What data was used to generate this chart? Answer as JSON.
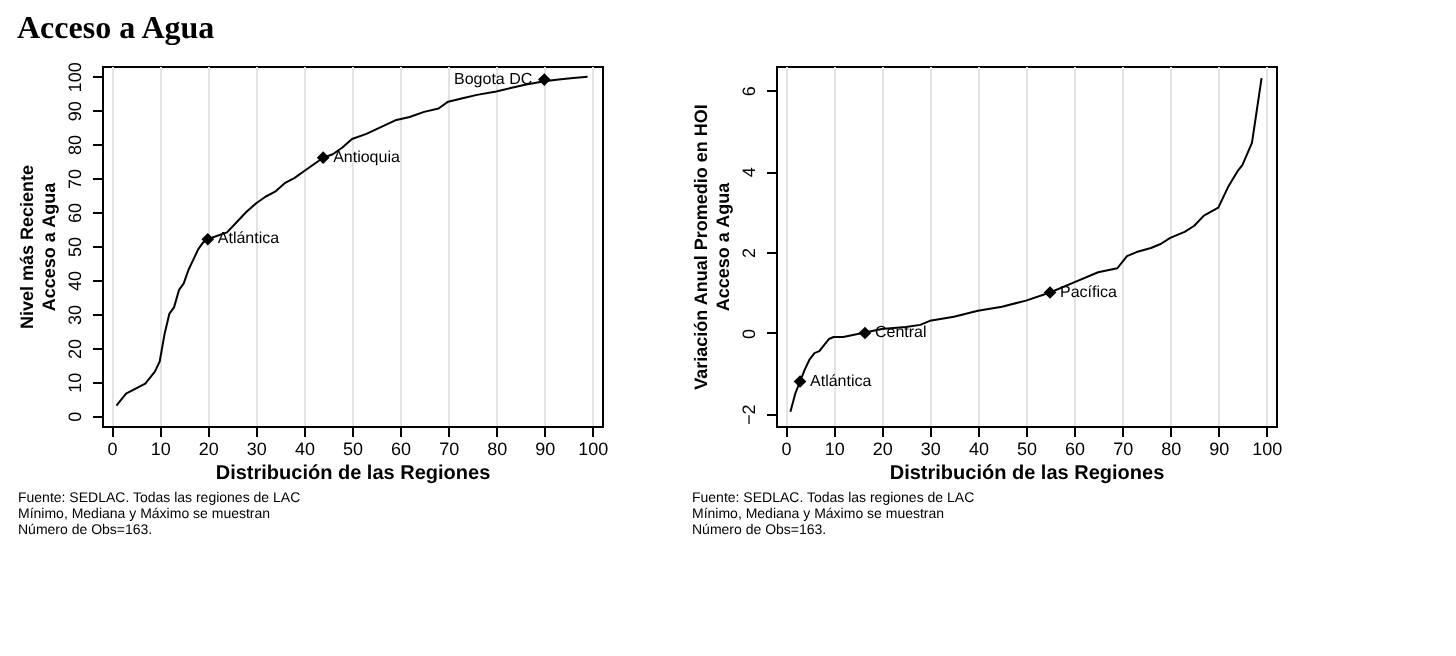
{
  "chart_data": [
    {
      "type": "line",
      "title": "Acceso a Agua",
      "xlabel": "Distribución de las Regiones",
      "ylabel": "Nivel más Reciente\nAcceso a Agua",
      "xlim": [
        -2,
        102
      ],
      "xticks": [
        0,
        10,
        20,
        30,
        40,
        50,
        60,
        70,
        80,
        90,
        100
      ],
      "ylim": [
        -3,
        103
      ],
      "yticks": [
        0,
        10,
        20,
        30,
        40,
        50,
        60,
        70,
        80,
        90,
        100
      ],
      "grid": "x",
      "series": [
        {
          "color": "#000000",
          "x": [
            1,
            3,
            5,
            7,
            9,
            10,
            11,
            12,
            13,
            14,
            15,
            16,
            17,
            18,
            19,
            20,
            22,
            24,
            26,
            28,
            30,
            32,
            34,
            36,
            38,
            40,
            42,
            44,
            46,
            48,
            50,
            53,
            56,
            59,
            62,
            65,
            68,
            70,
            73,
            76,
            80,
            83,
            86,
            88,
            90,
            93,
            96,
            99
          ],
          "values": [
            3,
            6.5,
            8,
            9.5,
            13,
            16,
            24,
            30,
            32,
            37,
            39,
            43,
            46,
            49,
            51,
            52,
            53,
            54,
            57,
            60,
            62.5,
            64.5,
            66,
            68.5,
            70,
            72,
            74,
            76,
            77,
            79,
            81.5,
            83,
            85,
            87,
            88,
            89.5,
            90.5,
            92.5,
            93.5,
            94.5,
            95.5,
            96.5,
            97.5,
            98,
            98.5,
            99,
            99.5,
            99.8
          ]
        },
        {
          "type": "scatter",
          "marker": "diamond",
          "color": "#000000",
          "x": [
            20,
            44,
            90
          ],
          "values": [
            52,
            76,
            99
          ]
        }
      ],
      "annotations": [
        {
          "text": "Atlántica",
          "x": 20,
          "y": 52
        },
        {
          "text": "Antioquia",
          "x": 44,
          "y": 76
        },
        {
          "text": "Bogota DC",
          "x": 90,
          "y": 99
        },
        "Fuente: SEDLAC. Todas las regiones de LAC",
        "Mínimo, Mediana y Máximo se muestran",
        "Número de Obs=163."
      ]
    },
    {
      "type": "line",
      "xlabel": "Distribución de las Regiones",
      "ylabel": "Variación Anual Promedio en HOI\nAcceso a Agua",
      "xlim": [
        -2,
        102
      ],
      "xticks": [
        0,
        10,
        20,
        30,
        40,
        50,
        60,
        70,
        80,
        90,
        100
      ],
      "ylim": [
        -2.3,
        6.6
      ],
      "yticks": [
        -2,
        0,
        2,
        4,
        6
      ],
      "grid": "x",
      "series": [
        {
          "color": "#000000",
          "x": [
            1,
            2,
            3,
            4,
            5,
            6,
            7,
            8,
            9,
            10,
            12,
            14,
            16,
            18,
            20,
            25,
            28,
            30,
            35,
            40,
            45,
            50,
            55,
            60,
            65,
            69,
            71,
            73,
            76,
            78,
            80,
            83,
            85,
            87,
            90,
            92,
            94,
            95,
            97,
            98,
            99
          ],
          "values": [
            -1.95,
            -1.5,
            -1.2,
            -0.9,
            -0.65,
            -0.5,
            -0.45,
            -0.3,
            -0.15,
            -0.1,
            -0.1,
            -0.05,
            0,
            0.05,
            0.1,
            0.15,
            0.2,
            0.3,
            0.4,
            0.55,
            0.65,
            0.8,
            1.0,
            1.25,
            1.5,
            1.6,
            1.9,
            2.0,
            2.1,
            2.2,
            2.35,
            2.5,
            2.65,
            2.9,
            3.1,
            3.6,
            4.0,
            4.15,
            4.7,
            5.5,
            6.3
          ]
        },
        {
          "type": "scatter",
          "marker": "diamond",
          "color": "#000000",
          "x": [
            3,
            16.5,
            55
          ],
          "values": [
            -1.2,
            0,
            1.0
          ]
        }
      ],
      "annotations": [
        {
          "text": "Atlántica",
          "x": 3,
          "y": -1.2
        },
        {
          "text": "Central",
          "x": 16.5,
          "y": 0
        },
        {
          "text": "Pacífica",
          "x": 55,
          "y": 1.0
        },
        "Fuente: SEDLAC. Todas las regiones de LAC",
        "Mínimo, Mediana y Máximo se muestran",
        "Número de Obs=163."
      ]
    }
  ]
}
